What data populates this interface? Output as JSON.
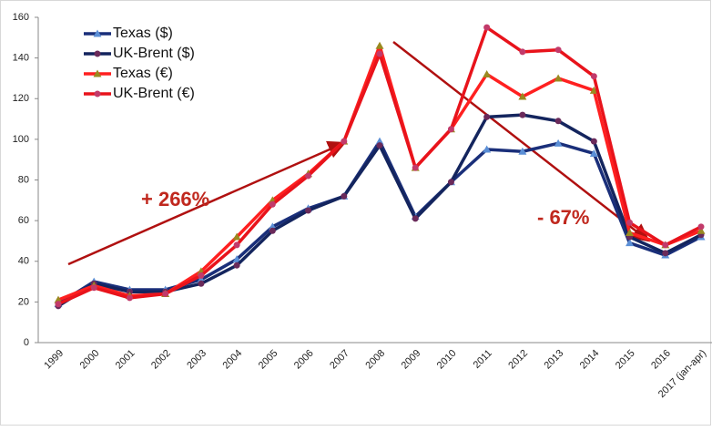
{
  "chart_data": {
    "type": "line",
    "categories": [
      "1999",
      "2000",
      "2001",
      "2002",
      "2003",
      "2004",
      "2005",
      "2006",
      "2007",
      "2008",
      "2009",
      "2010",
      "2011",
      "2012",
      "2013",
      "2014",
      "2015",
      "2016",
      "2017 (jan-apr)"
    ],
    "series": [
      {
        "name": "Texas ($)",
        "color": "#1a2f7a",
        "marker": "triangle",
        "marker_color": "#5b8fd6",
        "values": [
          19,
          30,
          26,
          26,
          31,
          41,
          57,
          66,
          72,
          99,
          62,
          79,
          95,
          94,
          98,
          93,
          49,
          43,
          52
        ]
      },
      {
        "name": "UK-Brent ($)",
        "color": "#14255e",
        "marker": "circle",
        "marker_color": "#6a2a5a",
        "values": [
          18,
          29,
          25,
          25,
          29,
          38,
          55,
          65,
          72,
          97,
          61,
          79,
          111,
          112,
          109,
          99,
          52,
          44,
          53
        ]
      },
      {
        "name": "Texas (€)",
        "color": "#ff2020",
        "marker": "triangle",
        "marker_color": "#9a8a20",
        "values": [
          21,
          28,
          23,
          24,
          35,
          52,
          70,
          83,
          99,
          146,
          86,
          105,
          132,
          121,
          130,
          124,
          54,
          48,
          55
        ]
      },
      {
        "name": "UK-Brent (€)",
        "color": "#e8131b",
        "marker": "circle",
        "marker_color": "#c23a6a",
        "values": [
          19,
          27,
          22,
          24,
          33,
          48,
          68,
          82,
          99,
          142,
          86,
          105,
          155,
          143,
          144,
          131,
          59,
          48,
          57
        ]
      }
    ],
    "ylim": [
      0,
      160
    ],
    "yticks": [
      0,
      20,
      40,
      60,
      80,
      100,
      120,
      140,
      160
    ],
    "legend": "upper left",
    "annotations": [
      "+ 266%",
      "- 67%"
    ]
  }
}
